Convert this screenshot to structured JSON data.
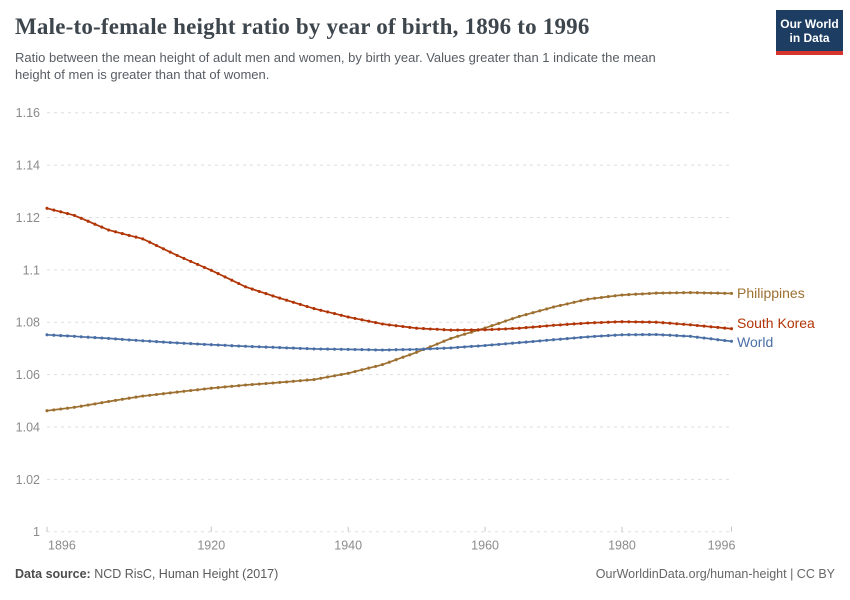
{
  "header": {
    "title": "Male-to-female height ratio by year of birth, 1896 to 1996",
    "subtitle": "Ratio between the mean height of adult men and women, by birth year. Values greater than 1 indicate the mean height of men is greater than that of women."
  },
  "logo": {
    "line1": "Our World",
    "line2": "in Data",
    "bg_color": "#1d3d63",
    "stripe_color": "#d7342e"
  },
  "footer": {
    "source_label": "Data source:",
    "source_text": " NCD RisC, Human Height (2017)",
    "right_text": "OurWorldinData.org/human-height | CC BY"
  },
  "chart_data": {
    "type": "line",
    "title": "Male-to-female height ratio by year of birth, 1896 to 1996",
    "xlabel": "",
    "ylabel": "",
    "xlim": [
      1896,
      1996
    ],
    "ylim": [
      1,
      1.16
    ],
    "grid": true,
    "grid_style": "dashed",
    "legend": "line-end-labels",
    "marker": "point-per-year",
    "x_axis": {
      "ticks": [
        1896,
        1920,
        1940,
        1960,
        1980,
        1996
      ]
    },
    "y_axis": {
      "ticks": [
        {
          "v": 1,
          "label": "1"
        },
        {
          "v": 1.02,
          "label": "1.02"
        },
        {
          "v": 1.04,
          "label": "1.04"
        },
        {
          "v": 1.06,
          "label": "1.06"
        },
        {
          "v": 1.08,
          "label": "1.08"
        },
        {
          "v": 1.1,
          "label": "1.1"
        },
        {
          "v": 1.12,
          "label": "1.12"
        },
        {
          "v": 1.14,
          "label": "1.14"
        },
        {
          "v": 1.16,
          "label": "1.16"
        }
      ]
    },
    "series": [
      {
        "name": "Philippines",
        "color": "#9d7031",
        "label_dy": 0,
        "points": [
          [
            1896,
            1.0462
          ],
          [
            1900,
            1.0475
          ],
          [
            1905,
            1.0497
          ],
          [
            1910,
            1.0518
          ],
          [
            1915,
            1.0533
          ],
          [
            1920,
            1.0548
          ],
          [
            1925,
            1.056
          ],
          [
            1930,
            1.057
          ],
          [
            1935,
            1.0581
          ],
          [
            1940,
            1.0605
          ],
          [
            1945,
            1.0638
          ],
          [
            1950,
            1.0685
          ],
          [
            1955,
            1.0738
          ],
          [
            1960,
            1.0778
          ],
          [
            1965,
            1.0822
          ],
          [
            1970,
            1.0858
          ],
          [
            1975,
            1.0888
          ],
          [
            1980,
            1.0904
          ],
          [
            1985,
            1.0911
          ],
          [
            1990,
            1.0913
          ],
          [
            1996,
            1.091
          ]
        ]
      },
      {
        "name": "South Korea",
        "color": "#b13507",
        "label_dy": -5,
        "points": [
          [
            1896,
            1.1235
          ],
          [
            1900,
            1.1208
          ],
          [
            1905,
            1.1152
          ],
          [
            1910,
            1.1118
          ],
          [
            1915,
            1.1055
          ],
          [
            1920,
            1.0998
          ],
          [
            1925,
            1.0935
          ],
          [
            1930,
            1.0892
          ],
          [
            1935,
            1.0852
          ],
          [
            1940,
            1.082
          ],
          [
            1945,
            1.0793
          ],
          [
            1950,
            1.0777
          ],
          [
            1955,
            1.077
          ],
          [
            1960,
            1.0771
          ],
          [
            1965,
            1.0777
          ],
          [
            1970,
            1.0788
          ],
          [
            1975,
            1.0797
          ],
          [
            1980,
            1.0802
          ],
          [
            1985,
            1.08
          ],
          [
            1990,
            1.079
          ],
          [
            1996,
            1.0775
          ]
        ]
      },
      {
        "name": "World",
        "color": "#4a6fa5",
        "label_dy": 1,
        "points": [
          [
            1896,
            1.0752
          ],
          [
            1900,
            1.0746
          ],
          [
            1905,
            1.0738
          ],
          [
            1910,
            1.0729
          ],
          [
            1915,
            1.0721
          ],
          [
            1920,
            1.0714
          ],
          [
            1925,
            1.0708
          ],
          [
            1930,
            1.0703
          ],
          [
            1935,
            1.0698
          ],
          [
            1940,
            1.0696
          ],
          [
            1945,
            1.0694
          ],
          [
            1950,
            1.0696
          ],
          [
            1955,
            1.0702
          ],
          [
            1960,
            1.0711
          ],
          [
            1965,
            1.0722
          ],
          [
            1970,
            1.0733
          ],
          [
            1975,
            1.0744
          ],
          [
            1980,
            1.0752
          ],
          [
            1985,
            1.0753
          ],
          [
            1990,
            1.0746
          ],
          [
            1996,
            1.0727
          ]
        ]
      }
    ],
    "style": {
      "grid_color": "#dedede",
      "axis_text_color": "#8b8b8b",
      "tick_color": "#c6c6c6"
    }
  }
}
